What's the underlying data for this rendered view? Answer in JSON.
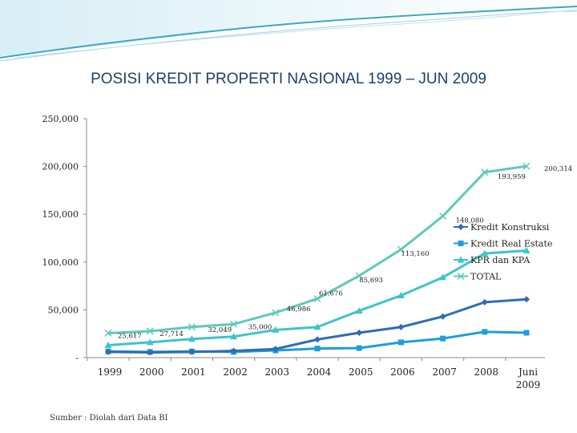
{
  "slide": {
    "title": "POSISI KREDIT PROPERTI NASIONAL 1999 – JUN 2009",
    "source": "Sumber : Diolah dari Data BI",
    "colors": {
      "banner_light": "#dff3f7",
      "banner_accent": "#3aa7c7",
      "title": "#1f3f66"
    }
  },
  "chart_data": {
    "type": "line",
    "title": "POSISI KREDIT PROPERTI NASIONAL 1999 – JUN 2009",
    "categories": [
      "1999",
      "2000",
      "2001",
      "2002",
      "2003",
      "2004",
      "2005",
      "2006",
      "2007",
      "2008",
      "Juni\n2009"
    ],
    "y_tick_labels": [
      "-",
      "50,000",
      "100,000",
      "150,000",
      "200,000",
      "250,000"
    ],
    "ylim": [
      0,
      250000
    ],
    "grid": false,
    "legend_position": "right",
    "series": [
      {
        "name": "Kredit Konstruksi",
        "color": "#2e6db4",
        "marker": "diamond",
        "values": [
          6000,
          5500,
          6000,
          7000,
          9000,
          19000,
          26000,
          32000,
          43000,
          58000,
          61000
        ]
      },
      {
        "name": "Kredit Real Estate",
        "color": "#1e9ed8",
        "marker": "square",
        "values": [
          6500,
          6000,
          6500,
          6000,
          7500,
          9500,
          10000,
          16000,
          20000,
          27000,
          26000
        ]
      },
      {
        "name": "KPR dan KPA",
        "color": "#3ec4c8",
        "marker": "triangle",
        "values": [
          13000,
          16000,
          19500,
          22000,
          29000,
          32000,
          49000,
          65000,
          84000,
          109000,
          112000
        ]
      },
      {
        "name": "TOTAL",
        "color": "#5fc9b8",
        "marker": "x",
        "values": [
          25617,
          27714,
          32049,
          35000,
          46986,
          61676,
          85693,
          113160,
          148080,
          193959,
          200314
        ],
        "labels": [
          "25,617",
          "27,714",
          "32,049",
          "35,000",
          "46,986",
          "61,676",
          "85,693",
          "113,160",
          "148,080",
          "193,959",
          "200,314"
        ]
      }
    ]
  }
}
